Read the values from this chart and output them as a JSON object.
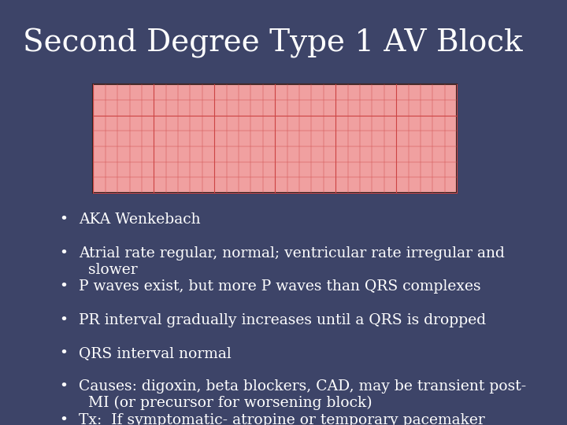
{
  "title": "Second Degree Type 1 AV Block",
  "background_color": "#3d4468",
  "title_color": "#ffffff",
  "title_fontsize": 28,
  "ecg_box_color": "#f0a0a0",
  "ecg_grid_color": "#cc4444",
  "ecg_line_color": "#111111",
  "bullet_color": "#ffffff",
  "bullet_fontsize": 13.5,
  "bullets": [
    "AKA Wenkebach",
    "Atrial rate regular, normal; ventricular rate irregular and\n  slower",
    "P waves exist, but more P waves than QRS complexes",
    "PR interval gradually increases until a QRS is dropped",
    "QRS interval normal",
    "Causes: digoxin, beta blockers, CAD, may be transient post-\n  MI (or precursor for worsening block)",
    "Tx:  If symptomatic- atropine or temporary pacemaker"
  ]
}
